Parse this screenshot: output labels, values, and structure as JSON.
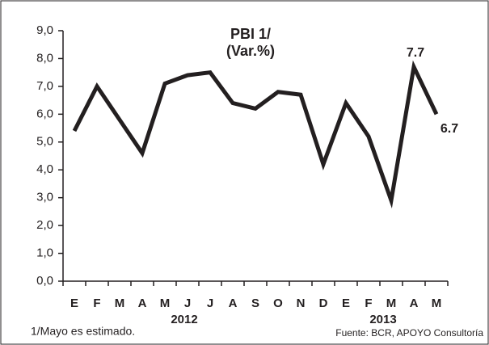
{
  "chart_data": {
    "type": "line",
    "title": "PBI 1/",
    "subtitle": "(Var.%)",
    "categories": [
      "E",
      "F",
      "M",
      "A",
      "M",
      "J",
      "J",
      "A",
      "S",
      "O",
      "N",
      "D",
      "E",
      "F",
      "M",
      "A",
      "M"
    ],
    "group_labels": [
      "2012",
      "2013"
    ],
    "series": [
      {
        "name": "PBI",
        "color": "#231f20",
        "values": [
          5.4,
          7.0,
          5.8,
          4.6,
          7.1,
          7.4,
          7.5,
          6.4,
          6.2,
          6.8,
          6.7,
          4.2,
          6.4,
          5.2,
          2.9,
          7.7,
          6.0
        ]
      }
    ],
    "annotations": [
      "7.7",
      "6.7"
    ],
    "ylim": [
      0,
      9
    ],
    "yticks": [
      {
        "value": 0,
        "label": "0,0"
      },
      {
        "value": 1,
        "label": "1,0"
      },
      {
        "value": 2,
        "label": "2,0"
      },
      {
        "value": 3,
        "label": "3,0"
      },
      {
        "value": 4,
        "label": "4,0"
      },
      {
        "value": 5,
        "label": "5,0"
      },
      {
        "value": 6,
        "label": "6,0"
      },
      {
        "value": 7,
        "label": "7,0"
      },
      {
        "value": 8,
        "label": "8,0"
      },
      {
        "value": 9,
        "label": "9,0"
      }
    ],
    "footnote": "1/Mayo es estimado.",
    "source": "Fuente: BCR, APOYO Consultoría"
  }
}
